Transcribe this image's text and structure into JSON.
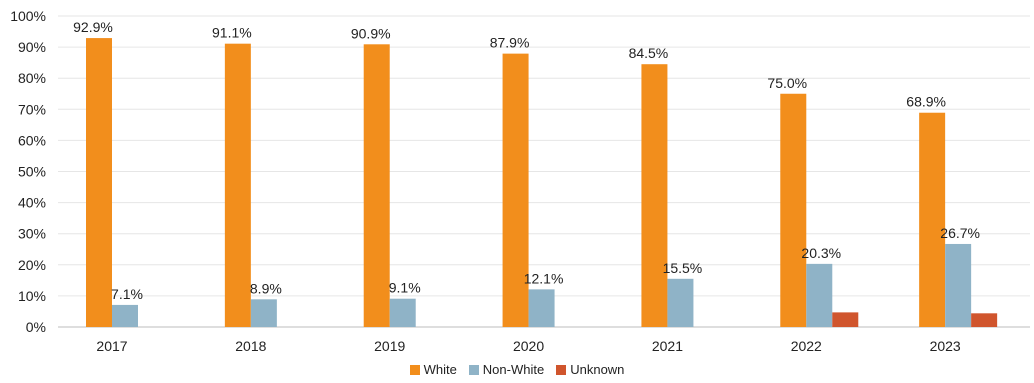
{
  "chart_data": {
    "type": "bar",
    "categories": [
      "2017",
      "2018",
      "2019",
      "2020",
      "2021",
      "2022",
      "2023"
    ],
    "series": [
      {
        "name": "White",
        "color": "#F28E1C",
        "values": [
          92.9,
          91.1,
          90.9,
          87.9,
          84.5,
          75.0,
          68.9
        ],
        "labels": [
          "92.9%",
          "91.1%",
          "90.9%",
          "87.9%",
          "84.5%",
          "75.0%",
          "68.9%"
        ]
      },
      {
        "name": "Non-White",
        "color": "#8FB3C7",
        "values": [
          7.1,
          8.9,
          9.1,
          12.1,
          15.5,
          20.3,
          26.7
        ],
        "labels": [
          "7.1%",
          "8.9%",
          "9.1%",
          "12.1%",
          "15.5%",
          "20.3%",
          "26.7%"
        ]
      },
      {
        "name": "Unknown",
        "color": "#D0552D",
        "values": [
          0,
          0,
          0,
          0,
          0,
          4.7,
          4.4
        ],
        "labels": [
          "",
          "",
          "",
          "",
          "",
          "",
          ""
        ]
      }
    ],
    "ylim": [
      0,
      100
    ],
    "yticks": [
      "0%",
      "10%",
      "20%",
      "30%",
      "40%",
      "50%",
      "60%",
      "70%",
      "80%",
      "90%",
      "100%"
    ],
    "grid": true,
    "legend_position": "bottom",
    "title": "",
    "xlabel": "",
    "ylabel": ""
  }
}
